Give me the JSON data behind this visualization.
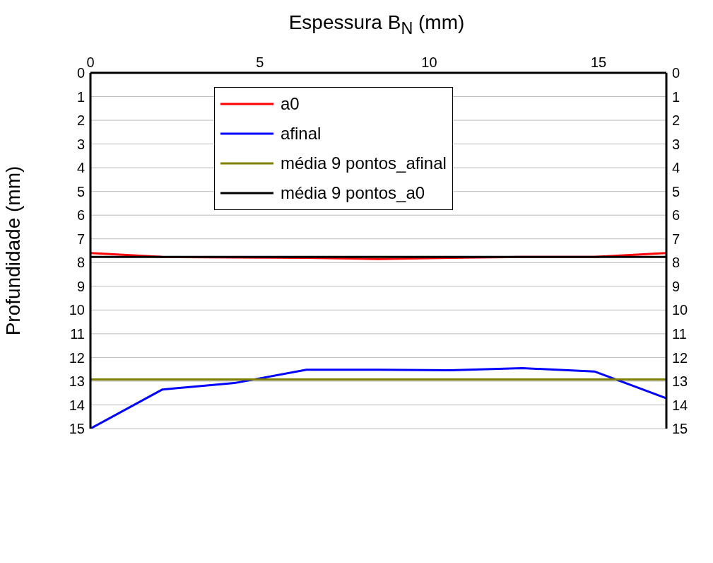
{
  "chart_data": {
    "type": "line",
    "xlabel": "Espessura B$_{N}$ (mm)",
    "ylabel": "Profundidade (mm)",
    "xlim": [
      0,
      17
    ],
    "xticks": [
      0,
      5,
      10,
      15
    ],
    "ylim": [
      15,
      0
    ],
    "yticks": [
      0,
      1,
      2,
      3,
      4,
      5,
      6,
      7,
      8,
      9,
      10,
      11,
      12,
      13,
      14,
      15
    ],
    "y2lim": [
      15,
      0
    ],
    "y2ticks": [
      0,
      1,
      2,
      3,
      4,
      5,
      6,
      7,
      8,
      9,
      10,
      11,
      12,
      13,
      14,
      15
    ],
    "grid": "y",
    "legend": "top left",
    "marker": "none",
    "line_style": "solid",
    "series": [
      {
        "name": "a0",
        "color": "#ff0000",
        "x": [
          0,
          2.125,
          4.25,
          6.375,
          8.5,
          10.625,
          12.75,
          14.875,
          17
        ],
        "values": [
          7.6,
          7.76,
          7.78,
          7.8,
          7.85,
          7.8,
          7.76,
          7.76,
          7.6
        ]
      },
      {
        "name": "afinal",
        "color": "#0000ff",
        "x": [
          0,
          2.125,
          4.25,
          6.375,
          8.5,
          10.625,
          12.75,
          14.875,
          17
        ],
        "values": [
          15,
          13.35,
          13.08,
          12.52,
          12.52,
          12.54,
          12.45,
          12.59,
          13.72
        ]
      },
      {
        "name": "média 9 pontos_afinal",
        "color": "#808000",
        "x": [
          0,
          17
        ],
        "values": [
          12.93,
          12.93
        ]
      },
      {
        "name": "média 9 pontos_a0",
        "color": "#000000",
        "x": [
          0,
          17
        ],
        "values": [
          7.76,
          7.76
        ]
      }
    ]
  }
}
